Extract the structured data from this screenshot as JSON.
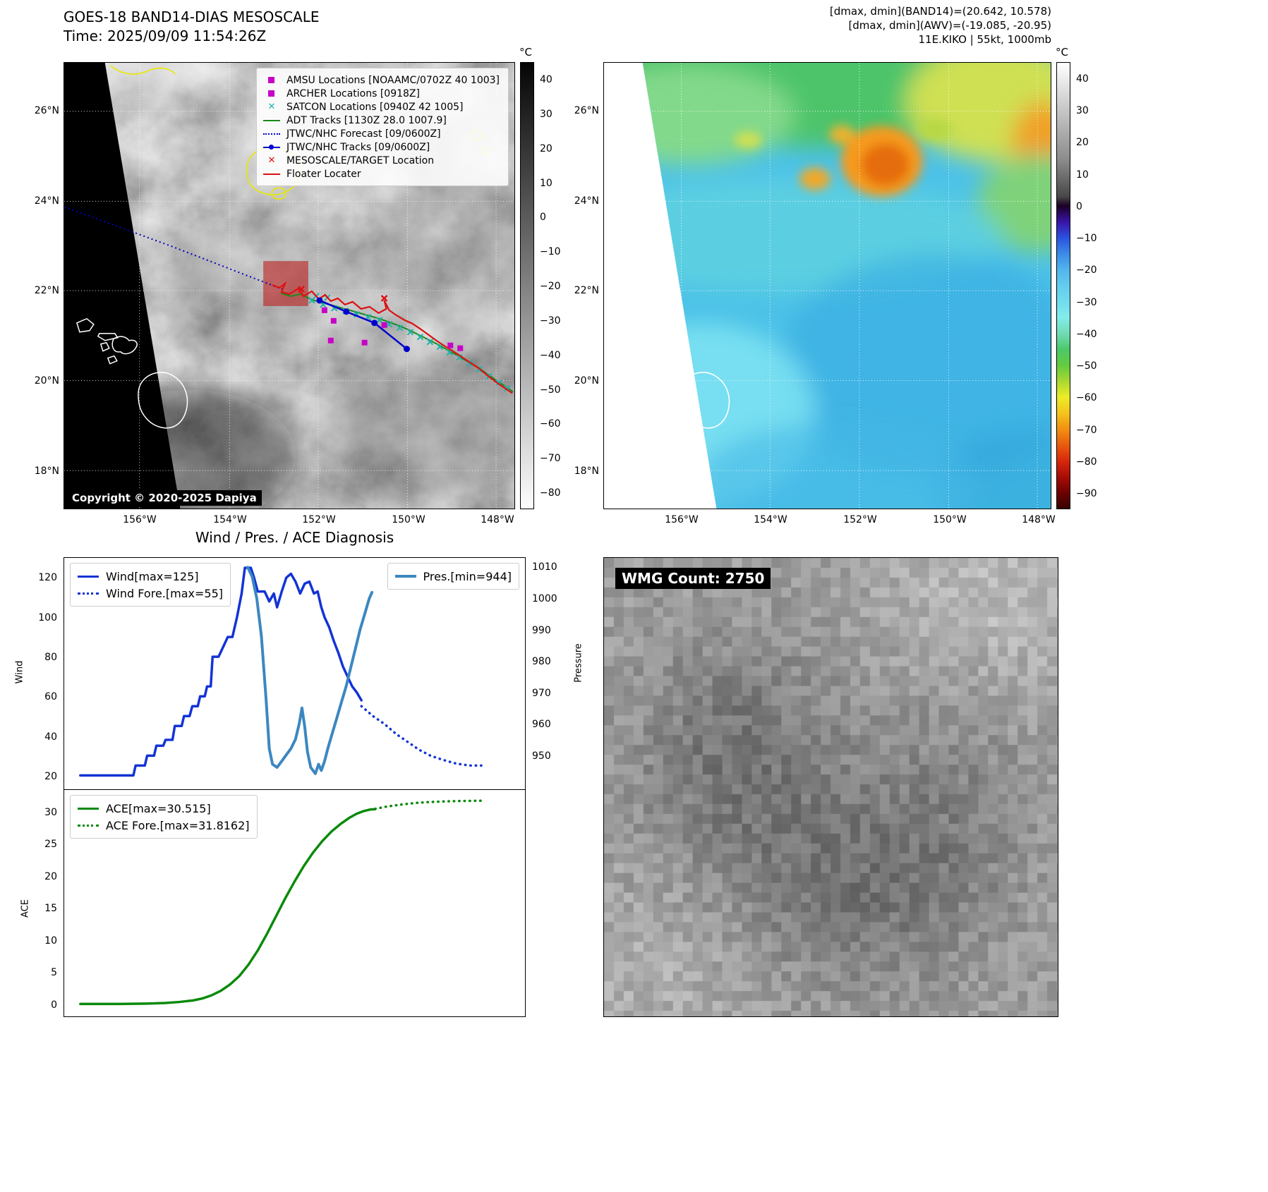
{
  "left_map": {
    "title": "GOES-18 BAND14-DIAS MESOSCALE",
    "subtitle": "Time: 2025/09/09 11:54:26Z",
    "copyright": "Copyright © 2020-2025 Dapiya",
    "colorbar_unit": "°C",
    "colorbar_ticks": [
      "40",
      "30",
      "20",
      "10",
      "0",
      "−10",
      "−20",
      "−30",
      "−40",
      "−50",
      "−60",
      "−70",
      "−80"
    ],
    "legend": [
      {
        "label": "AMSU Locations [NOAAMC/0702Z 40 1003]",
        "marker": "square",
        "color": "#c800c8"
      },
      {
        "label": "ARCHER Locations [0918Z]",
        "marker": "square",
        "color": "#c800c8"
      },
      {
        "label": "SATCON Locations [0940Z 42 1005]",
        "marker": "x",
        "color": "#20b2aa"
      },
      {
        "label": "ADT Tracks [1130Z 28.0 1007.9]",
        "marker": "line",
        "color": "#1a8a1a"
      },
      {
        "label": "JTWC/NHC Forecast [09/0600Z]",
        "marker": "dotted-line",
        "color": "#0000cc"
      },
      {
        "label": "JTWC/NHC Tracks [09/0600Z]",
        "marker": "line-dot",
        "color": "#0000cc"
      },
      {
        "label": "MESOSCALE/TARGET Location",
        "marker": "x",
        "color": "#dd1111"
      },
      {
        "label": "Floater Locater",
        "marker": "line",
        "color": "#dd1111"
      }
    ]
  },
  "geo": {
    "lat_ticks": [
      "26°N",
      "24°N",
      "22°N",
      "20°N",
      "18°N"
    ],
    "lon_ticks": [
      "156°W",
      "154°W",
      "152°W",
      "150°W",
      "148°W"
    ]
  },
  "right_map": {
    "header_line1": "[dmax, dmin](BAND14)=(20.642, 10.578)",
    "header_line2": "[dmax, dmin](AWV)=(-19.085, -20.95)",
    "header_line3": "11E.KIKO | 55kt, 1000mb",
    "colorbar_unit": "°C",
    "colorbar_ticks": [
      "40",
      "30",
      "20",
      "10",
      "0",
      "−10",
      "−20",
      "−30",
      "−40",
      "−50",
      "−60",
      "−70",
      "−80",
      "−90"
    ]
  },
  "wmg": {
    "label": "WMG Count: 2750"
  },
  "chart_data": {
    "type": "line",
    "title": "Wind / Pres. / ACE Diagnosis",
    "subplots": [
      {
        "id": "wind-svg",
        "ylabel_left": "Wind",
        "ylabel_right": "Pressure",
        "ylim_left": [
          13,
          130
        ],
        "ylim_right": [
          939,
          1013
        ],
        "yticks_left": [
          20,
          40,
          60,
          80,
          100,
          120
        ],
        "yticks_right": [
          950,
          960,
          970,
          980,
          990,
          1000,
          1010
        ],
        "legend_position": "upper left / upper right",
        "series": [
          {
            "name": "Wind[max=125]",
            "axis": "left",
            "color": "#1333d6",
            "width": 3.5,
            "style": "solid",
            "x": [
              0.035,
              0.15,
              0.155,
              0.175,
              0.18,
              0.195,
              0.2,
              0.215,
              0.22,
              0.235,
              0.24,
              0.255,
              0.26,
              0.272,
              0.278,
              0.29,
              0.295,
              0.305,
              0.31,
              0.318,
              0.322,
              0.335,
              0.345,
              0.355,
              0.365,
              0.375,
              0.385,
              0.392,
              0.405,
              0.412,
              0.42,
              0.435,
              0.445,
              0.455,
              0.462,
              0.472,
              0.482,
              0.492,
              0.502,
              0.512,
              0.522,
              0.532,
              0.542,
              0.55,
              0.558,
              0.565,
              0.575,
              0.585,
              0.595,
              0.605,
              0.615,
              0.625,
              0.635,
              0.645
            ],
            "y": [
              20,
              20,
              25,
              25,
              30,
              30,
              35,
              35,
              38,
              38,
              45,
              45,
              50,
              50,
              55,
              55,
              60,
              60,
              65,
              65,
              80,
              80,
              85,
              90,
              90,
              100,
              112,
              125,
              125,
              120,
              113,
              113,
              108,
              112,
              105,
              113,
              120,
              122,
              118,
              112,
              117,
              118,
              112,
              113,
              105,
              100,
              95,
              88,
              82,
              75,
              70,
              65,
              62,
              58
            ]
          },
          {
            "name": "Wind Fore.[max=55]",
            "axis": "left",
            "color": "#1333d6",
            "width": 3.5,
            "style": "dotted",
            "x": [
              0.645,
              0.67,
              0.695,
              0.72,
              0.745,
              0.77,
              0.795,
              0.82,
              0.85,
              0.88,
              0.905
            ],
            "y": [
              55,
              50,
              46,
              41,
              37,
              33,
              30,
              28,
              26,
              25,
              25
            ]
          },
          {
            "name": "Pres.[min=944]",
            "axis": "right",
            "color": "#3c87c0",
            "width": 4,
            "style": "solid",
            "x": [
              0.398,
              0.408,
              0.418,
              0.428,
              0.438,
              0.445,
              0.452,
              0.462,
              0.472,
              0.482,
              0.492,
              0.502,
              0.51,
              0.516,
              0.522,
              0.528,
              0.535,
              0.545,
              0.552,
              0.558,
              0.565,
              0.572,
              0.582,
              0.592,
              0.602,
              0.612,
              0.622,
              0.632,
              0.642,
              0.652,
              0.662,
              0.668
            ],
            "y": [
              1010,
              1007,
              1000,
              988,
              968,
              952,
              947,
              946,
              948,
              950,
              952,
              955,
              960,
              965,
              959,
              951,
              946,
              944,
              947,
              945,
              948,
              952,
              957,
              962,
              967,
              972,
              978,
              984,
              990,
              995,
              1000,
              1002
            ]
          }
        ]
      },
      {
        "id": "ace-svg",
        "ylabel_left": "ACE",
        "ylim_left": [
          -1.9,
          33.5
        ],
        "yticks_left": [
          0,
          5,
          10,
          15,
          20,
          25,
          30
        ],
        "legend_position": "upper left",
        "series": [
          {
            "name": "ACE[max=30.515]",
            "axis": "left",
            "color": "#0a8a0a",
            "width": 3.5,
            "style": "solid",
            "x": [
              0.035,
              0.12,
              0.18,
              0.22,
              0.25,
              0.28,
              0.3,
              0.32,
              0.34,
              0.36,
              0.38,
              0.4,
              0.42,
              0.44,
              0.46,
              0.48,
              0.5,
              0.52,
              0.54,
              0.56,
              0.58,
              0.6,
              0.62,
              0.635,
              0.65,
              0.665,
              0.675
            ],
            "y": [
              0.05,
              0.05,
              0.1,
              0.2,
              0.35,
              0.6,
              0.9,
              1.4,
              2.1,
              3.1,
              4.4,
              6.2,
              8.4,
              11,
              13.8,
              16.6,
              19.2,
              21.6,
              23.7,
              25.5,
              27,
              28.2,
              29.2,
              29.8,
              30.2,
              30.45,
              30.5
            ]
          },
          {
            "name": "ACE Fore.[max=31.8162]",
            "axis": "left",
            "color": "#0a8a0a",
            "width": 3.5,
            "style": "dotted",
            "x": [
              0.675,
              0.7,
              0.73,
              0.76,
              0.79,
              0.82,
              0.85,
              0.88,
              0.91
            ],
            "y": [
              30.55,
              30.9,
              31.2,
              31.45,
              31.6,
              31.7,
              31.76,
              31.8,
              31.82
            ]
          }
        ]
      }
    ]
  }
}
